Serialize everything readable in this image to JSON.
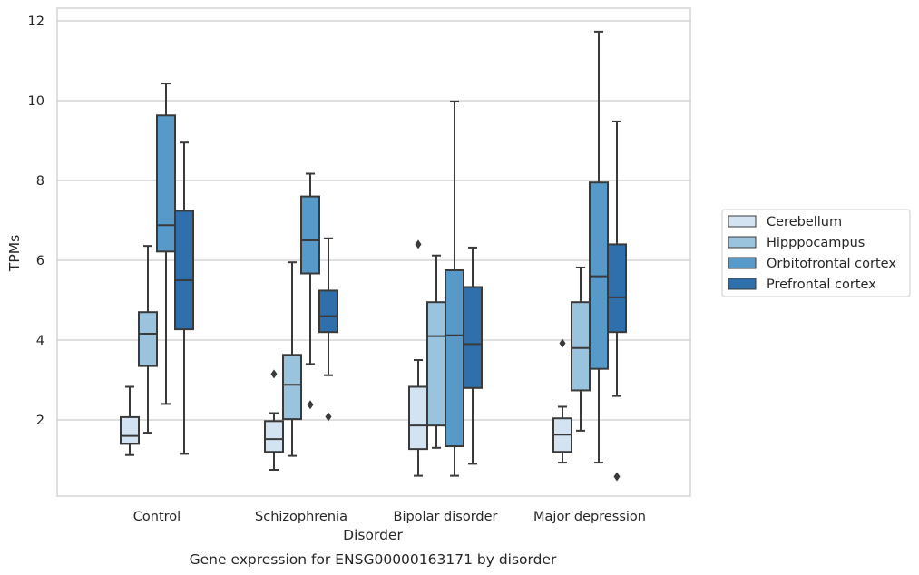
{
  "chart_data": {
    "type": "box",
    "title": "",
    "caption": "Gene expression for ENSG00000163171 by disorder",
    "xlabel": "Disorder",
    "ylabel": "TPMs",
    "ylim": [
      0,
      12.3
    ],
    "yticks": [
      2,
      4,
      6,
      8,
      10,
      12
    ],
    "grid": "horizontal",
    "legend_position": "right",
    "categories": [
      "Control",
      "Schizophrenia",
      "Bipolar disorder",
      "Major depression"
    ],
    "series": [
      {
        "name": "Cerebellum",
        "color": "#d3e3f2",
        "boxes": [
          {
            "whisker_low": 1.12,
            "q1": 1.4,
            "median": 1.6,
            "q3": 2.07,
            "whisker_high": 2.83,
            "outliers": []
          },
          {
            "whisker_low": 0.75,
            "q1": 1.2,
            "median": 1.52,
            "q3": 1.97,
            "whisker_high": 2.17,
            "outliers": [
              3.15
            ]
          },
          {
            "whisker_low": 0.6,
            "q1": 1.27,
            "median": 1.86,
            "q3": 2.83,
            "whisker_high": 3.5,
            "outliers": [
              6.4
            ]
          },
          {
            "whisker_low": 0.93,
            "q1": 1.2,
            "median": 1.63,
            "q3": 2.04,
            "whisker_high": 2.33,
            "outliers": [
              3.92
            ]
          }
        ]
      },
      {
        "name": "Hipppocampus",
        "color": "#9ac3dd",
        "boxes": [
          {
            "whisker_low": 1.68,
            "q1": 3.35,
            "median": 4.16,
            "q3": 4.7,
            "whisker_high": 6.36,
            "outliers": []
          },
          {
            "whisker_low": 1.1,
            "q1": 2.02,
            "median": 2.88,
            "q3": 3.63,
            "whisker_high": 5.95,
            "outliers": []
          },
          {
            "whisker_low": 1.3,
            "q1": 1.86,
            "median": 4.1,
            "q3": 4.95,
            "whisker_high": 6.12,
            "outliers": []
          },
          {
            "whisker_low": 1.73,
            "q1": 2.74,
            "median": 3.8,
            "q3": 4.95,
            "whisker_high": 5.82,
            "outliers": []
          }
        ]
      },
      {
        "name": "Orbitofrontal cortex",
        "color": "#5799c8",
        "boxes": [
          {
            "whisker_low": 2.4,
            "q1": 6.22,
            "median": 6.88,
            "q3": 9.63,
            "whisker_high": 10.43,
            "outliers": []
          },
          {
            "whisker_low": 3.4,
            "q1": 5.67,
            "median": 6.5,
            "q3": 7.6,
            "whisker_high": 8.17,
            "outliers": [
              2.38
            ]
          },
          {
            "whisker_low": 0.6,
            "q1": 1.34,
            "median": 4.12,
            "q3": 5.75,
            "whisker_high": 9.98,
            "outliers": []
          },
          {
            "whisker_low": 0.93,
            "q1": 3.28,
            "median": 5.6,
            "q3": 7.95,
            "whisker_high": 11.73,
            "outliers": []
          }
        ]
      },
      {
        "name": "Prefrontal cortex",
        "color": "#2f6fac",
        "boxes": [
          {
            "whisker_low": 1.15,
            "q1": 4.27,
            "median": 5.5,
            "q3": 7.24,
            "whisker_high": 8.95,
            "outliers": []
          },
          {
            "whisker_low": 3.12,
            "q1": 4.2,
            "median": 4.6,
            "q3": 5.24,
            "whisker_high": 6.55,
            "outliers": [
              2.08
            ]
          },
          {
            "whisker_low": 0.9,
            "q1": 2.8,
            "median": 3.9,
            "q3": 5.33,
            "whisker_high": 6.32,
            "outliers": []
          },
          {
            "whisker_low": 2.6,
            "q1": 4.2,
            "median": 5.07,
            "q3": 6.4,
            "whisker_high": 9.48,
            "outliers": [
              0.58
            ]
          }
        ]
      }
    ]
  }
}
